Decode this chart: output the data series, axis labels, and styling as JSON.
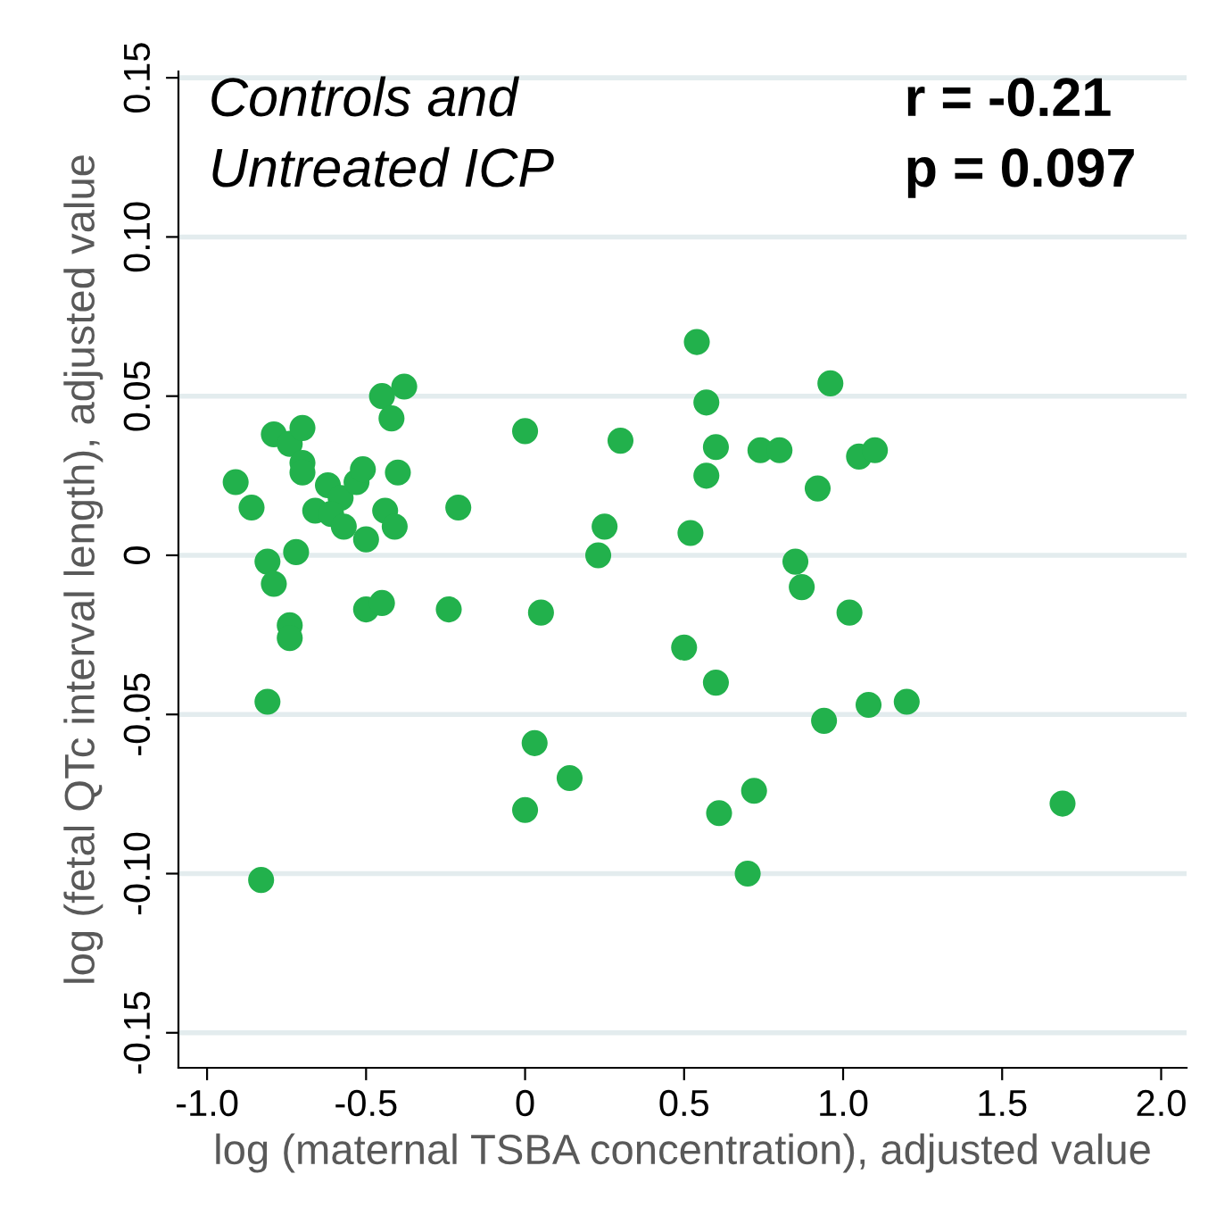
{
  "chart_data": {
    "type": "scatter",
    "xlabel": "log (maternal TSBA concentration), adjusted value",
    "ylabel": "log (fetal QTc interval length), adjusted value",
    "annotations": [
      "Controls and\nUntreated ICP",
      "r = -0.21\np = 0.097"
    ],
    "x": [
      -0.91,
      -0.86,
      -0.79,
      -0.74,
      -0.7,
      -0.7,
      -0.7,
      -0.81,
      -0.72,
      -0.79,
      -0.74,
      -0.74,
      -0.81,
      -0.62,
      -0.66,
      -0.58,
      -0.61,
      -0.57,
      -0.53,
      -0.51,
      -0.5,
      -0.45,
      -0.38,
      -0.42,
      -0.4,
      -0.44,
      -0.41,
      -0.5,
      -0.45,
      -0.21,
      -0.24,
      -0.83,
      0.0,
      0.3,
      0.54,
      0.57,
      0.6,
      0.57,
      0.74,
      0.8,
      0.96,
      1.05,
      1.1,
      0.92,
      0.25,
      0.52,
      0.23,
      0.85,
      0.87,
      0.05,
      1.02,
      0.5,
      0.6,
      0.94,
      1.08,
      1.2,
      0.03,
      0.14,
      0.0,
      0.61,
      0.72,
      0.7,
      1.69
    ],
    "values": [
      0.023,
      0.015,
      0.038,
      0.035,
      0.04,
      0.029,
      0.026,
      -0.002,
      0.001,
      -0.009,
      -0.022,
      -0.026,
      -0.046,
      0.022,
      0.014,
      0.018,
      0.013,
      0.009,
      0.023,
      0.027,
      0.005,
      0.05,
      0.053,
      0.043,
      0.026,
      0.014,
      0.009,
      -0.017,
      -0.015,
      0.015,
      -0.017,
      -0.102,
      0.039,
      0.036,
      0.067,
      0.048,
      0.034,
      0.025,
      0.033,
      0.033,
      0.054,
      0.031,
      0.033,
      0.021,
      0.009,
      0.007,
      0.0,
      -0.002,
      -0.01,
      -0.018,
      -0.018,
      -0.029,
      -0.04,
      -0.052,
      -0.047,
      -0.046,
      -0.059,
      -0.07,
      -0.08,
      -0.081,
      -0.074,
      -0.1,
      -0.078
    ],
    "color": "#22b14c",
    "marker": "circle",
    "xlim": [
      -1.09,
      2.08
    ],
    "ylim": [
      -0.161,
      0.152
    ],
    "xticks": [
      {
        "value": -1.0,
        "label": "-1.0"
      },
      {
        "value": -0.5,
        "label": "-0.5"
      },
      0,
      0.5,
      {
        "value": 1.0,
        "label": "1.0"
      },
      1.5,
      {
        "value": 2.0,
        "label": "2.0"
      }
    ],
    "yticks": [
      {
        "value": -0.15,
        "label": "-0.15"
      },
      {
        "value": -0.1,
        "label": "-0.10"
      },
      {
        "value": -0.05,
        "label": "-0.05"
      },
      0,
      0.05,
      {
        "value": 0.1,
        "label": "0.10"
      },
      0.15
    ],
    "grid": "y"
  }
}
